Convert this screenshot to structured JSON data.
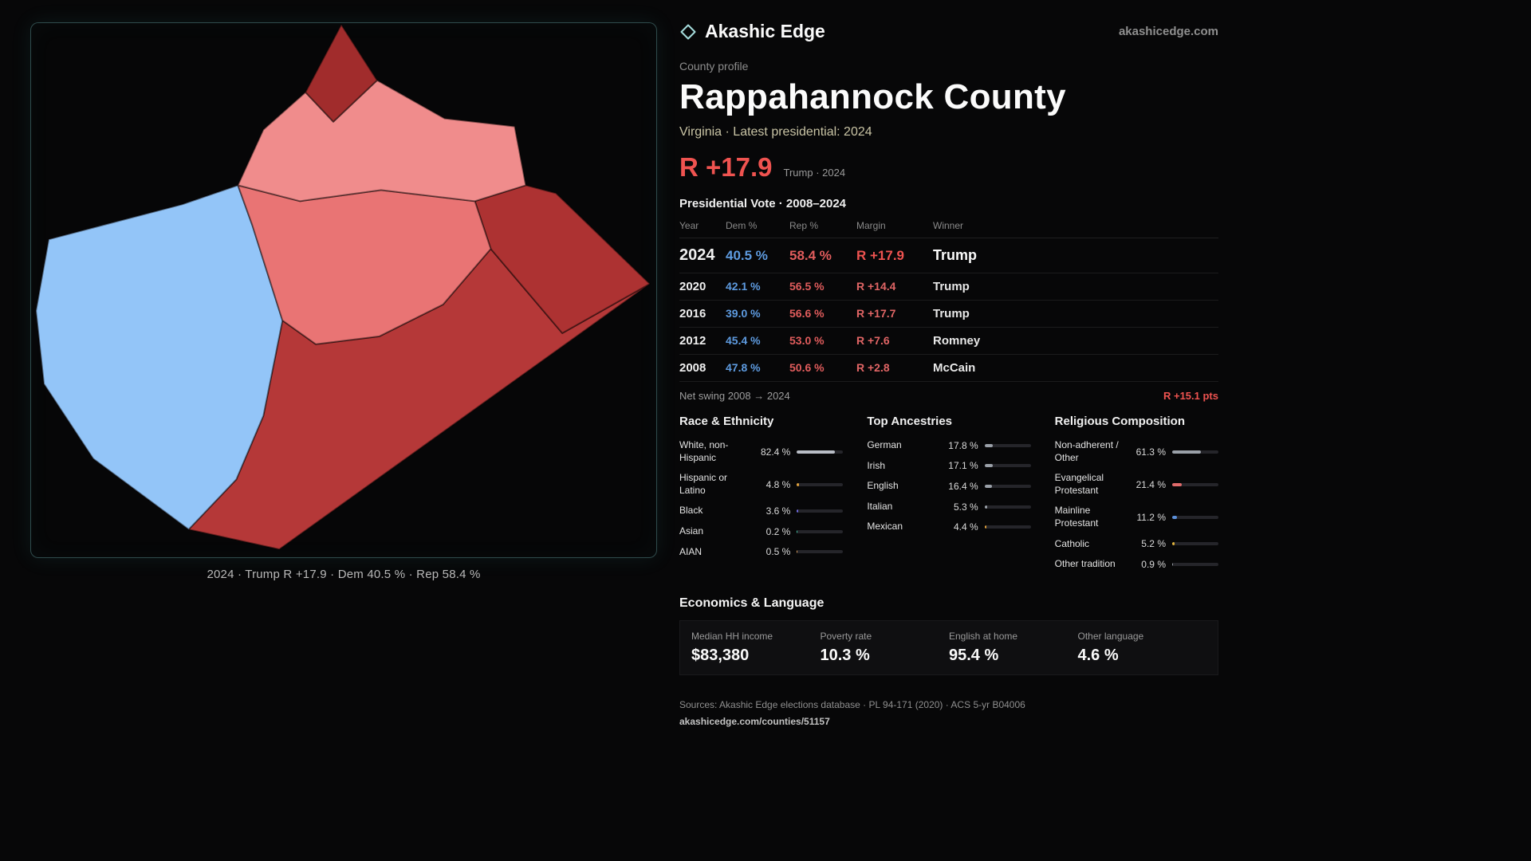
{
  "brand": {
    "name": "Akashic Edge",
    "domain": "akashicedge.com",
    "mark_icon": "diamond-outline"
  },
  "map": {
    "caption": "2024 · Trump R +17.9 · Dem 40.5 % · Rep 58.4 %",
    "regions": [
      {
        "name": "north-tip",
        "fill": "#a12c2c"
      },
      {
        "name": "north",
        "fill": "#f08c8c"
      },
      {
        "name": "central",
        "fill": "#e97474"
      },
      {
        "name": "west",
        "fill": "#93c5f8"
      },
      {
        "name": "east",
        "fill": "#ad3232"
      },
      {
        "name": "south",
        "fill": "#b53838"
      }
    ]
  },
  "profile": {
    "kicker": "County profile",
    "title": "Rappahannock County",
    "subtitle": "Virginia · Latest presidential: 2024",
    "headline_margin": "R +17.9",
    "headline_note": "Trump · 2024"
  },
  "vote": {
    "heading": "Presidential Vote · 2008–2024",
    "columns": [
      "Year",
      "Dem %",
      "Rep %",
      "Margin",
      "Winner"
    ],
    "rows": [
      {
        "year": "2024",
        "dem": "40.5 %",
        "rep": "58.4 %",
        "margin": "R +17.9",
        "winner": "Trump"
      },
      {
        "year": "2020",
        "dem": "42.1 %",
        "rep": "56.5 %",
        "margin": "R +14.4",
        "winner": "Trump"
      },
      {
        "year": "2016",
        "dem": "39.0 %",
        "rep": "56.6 %",
        "margin": "R +17.7",
        "winner": "Trump"
      },
      {
        "year": "2012",
        "dem": "45.4 %",
        "rep": "53.0 %",
        "margin": "R +7.6",
        "winner": "Romney"
      },
      {
        "year": "2008",
        "dem": "47.8 %",
        "rep": "50.6 %",
        "margin": "R +2.8",
        "winner": "McCain"
      }
    ],
    "net_swing_label": "Net swing 2008 → 2024",
    "net_swing_value": "R +15.1 pts"
  },
  "demographics": {
    "race": {
      "heading": "Race & Ethnicity",
      "rows": [
        {
          "label": "White, non-Hispanic",
          "value": "82.4 %",
          "pct": 82.4,
          "color": "#b9bdc6"
        },
        {
          "label": "Hispanic or Latino",
          "value": "4.8 %",
          "pct": 4.8,
          "color": "#e2a23b"
        },
        {
          "label": "Black",
          "value": "3.6 %",
          "pct": 3.6,
          "color": "#6f6adf"
        },
        {
          "label": "Asian",
          "value": "0.2 %",
          "pct": 0.2,
          "color": "#3fbf9f"
        },
        {
          "label": "AIAN",
          "value": "0.5 %",
          "pct": 0.5,
          "color": "#d99a5b"
        }
      ]
    },
    "ancestries": {
      "heading": "Top Ancestries",
      "rows": [
        {
          "label": "German",
          "value": "17.8 %",
          "pct": 17.8,
          "color": "#9aa0a8"
        },
        {
          "label": "Irish",
          "value": "17.1 %",
          "pct": 17.1,
          "color": "#9aa0a8"
        },
        {
          "label": "English",
          "value": "16.4 %",
          "pct": 16.4,
          "color": "#9aa0a8"
        },
        {
          "label": "Italian",
          "value": "5.3 %",
          "pct": 5.3,
          "color": "#9aa0a8"
        },
        {
          "label": "Mexican",
          "value": "4.4 %",
          "pct": 4.4,
          "color": "#e2a23b"
        }
      ]
    },
    "religion": {
      "heading": "Religious Composition",
      "rows": [
        {
          "label": "Non-adherent / Other",
          "value": "61.3 %",
          "pct": 61.3,
          "color": "#9aa0a8"
        },
        {
          "label": "Evangelical Protestant",
          "value": "21.4 %",
          "pct": 21.4,
          "color": "#e06a6a"
        },
        {
          "label": "Mainline Protestant",
          "value": "11.2 %",
          "pct": 11.2,
          "color": "#5b8fd9"
        },
        {
          "label": "Catholic",
          "value": "5.2 %",
          "pct": 5.2,
          "color": "#e0b23b"
        },
        {
          "label": "Other tradition",
          "value": "0.9 %",
          "pct": 0.9,
          "color": "#9aa0a8"
        }
      ]
    }
  },
  "economics": {
    "heading": "Economics & Language",
    "stats": [
      {
        "label": "Median HH income",
        "value": "$83,380"
      },
      {
        "label": "Poverty rate",
        "value": "10.3 %"
      },
      {
        "label": "English at home",
        "value": "95.4 %"
      },
      {
        "label": "Other language",
        "value": "4.6 %"
      }
    ]
  },
  "footer": {
    "sources": "Sources: Akashic Edge elections database · PL 94-171 (2020) · ACS 5-yr B04006",
    "permalink": "akashicedge.com/counties/51157"
  },
  "colors": {
    "accent_red": "#ef5350",
    "dem_blue": "#5e9be0",
    "rep_red": "#e05c5c",
    "subtitle_tan": "#c9c4a5",
    "panel_glow_teal": "#74bdbd"
  }
}
